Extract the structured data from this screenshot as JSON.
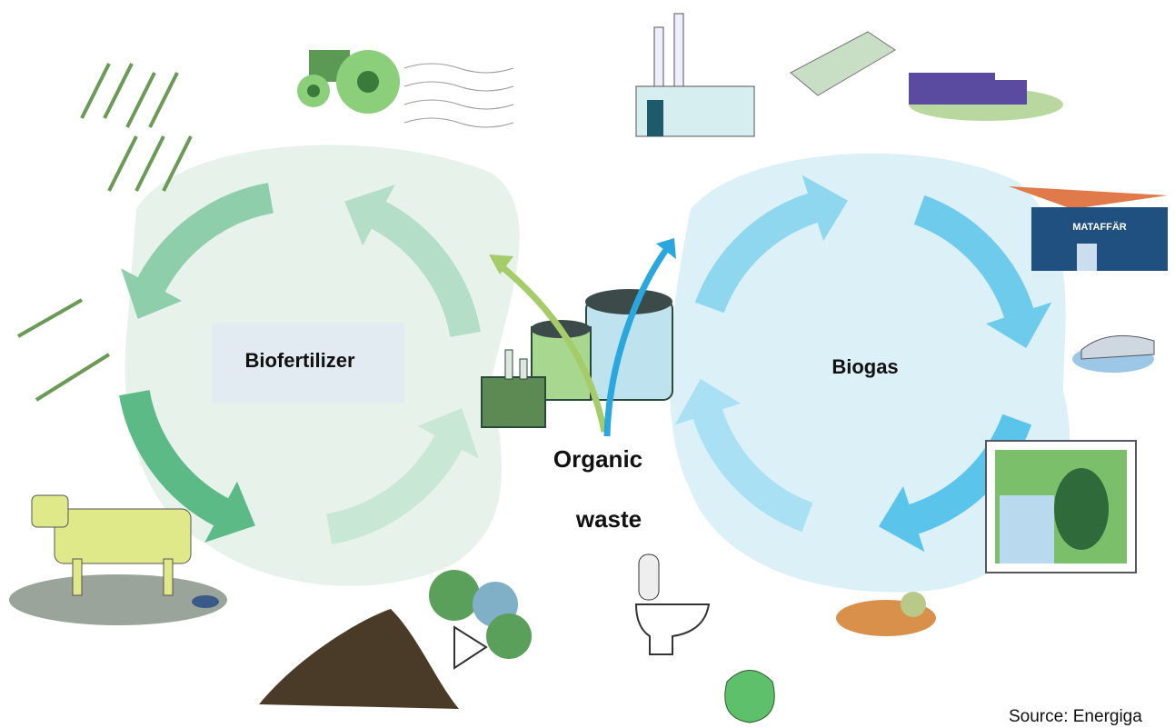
{
  "labels": {
    "left_cycle": "Biofertilizer",
    "right_cycle": "Biogas",
    "center": [
      "Organic",
      "waste"
    ]
  },
  "store_sign": "MATAFFÄR",
  "source": "Source: Energiga"
}
